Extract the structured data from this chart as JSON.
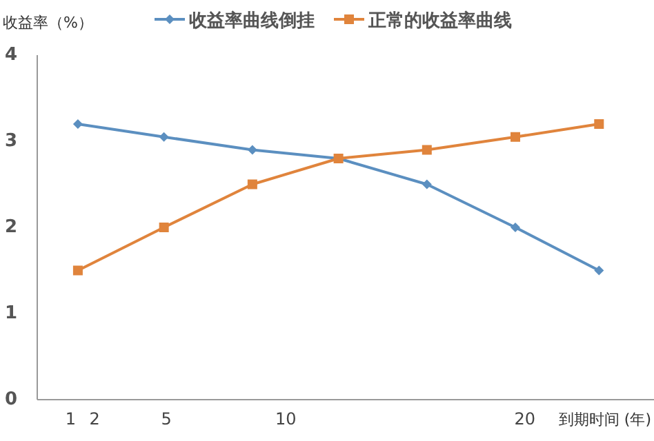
{
  "chart_data": {
    "type": "line",
    "ylabel": "收益率（%）",
    "xlabel": "到期时间 (年)",
    "x": [
      1.3,
      4.9,
      8.6,
      12.2,
      15.9,
      19.6,
      23.1
    ],
    "xlim": [
      -0.4,
      25.4
    ],
    "xticks": [
      1,
      2,
      5,
      10,
      20
    ],
    "ylim": [
      0,
      4
    ],
    "yticks": [
      0,
      1,
      2,
      3,
      4
    ],
    "grid": false,
    "legend": "top",
    "series": [
      {
        "name": "收益率曲线倒挂",
        "color": "#5b8fc0",
        "marker": "diamond",
        "values": [
          3.2,
          3.05,
          2.9,
          2.8,
          2.5,
          2.0,
          1.5
        ]
      },
      {
        "name": "正常的收益率曲线",
        "color": "#e0843c",
        "marker": "square",
        "values": [
          1.5,
          2.0,
          2.5,
          2.8,
          2.9,
          3.05,
          3.2
        ]
      }
    ]
  }
}
